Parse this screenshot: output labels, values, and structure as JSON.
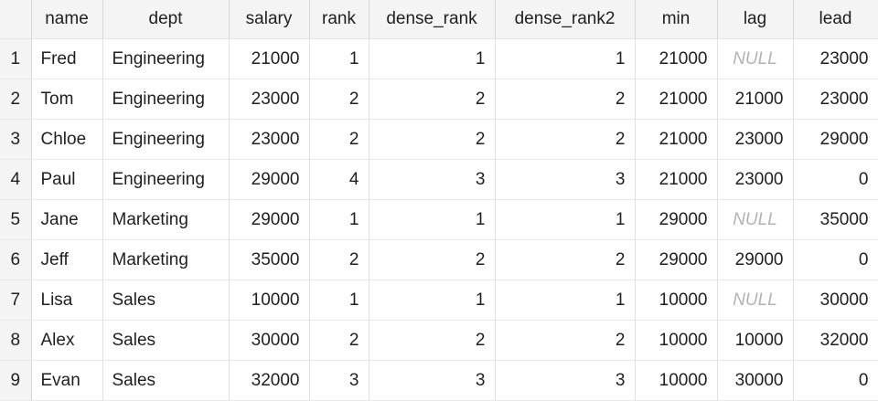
{
  "columns": [
    "name",
    "dept",
    "salary",
    "rank",
    "dense_rank",
    "dense_rank2",
    "min",
    "lag",
    "lead"
  ],
  "rows": [
    {
      "rownum": "1",
      "cells": [
        "Fred",
        "Engineering",
        "21000",
        "1",
        "1",
        "1",
        "21000",
        "NULL",
        "23000"
      ]
    },
    {
      "rownum": "2",
      "cells": [
        "Tom",
        "Engineering",
        "23000",
        "2",
        "2",
        "2",
        "21000",
        "21000",
        "23000"
      ]
    },
    {
      "rownum": "3",
      "cells": [
        "Chloe",
        "Engineering",
        "23000",
        "2",
        "2",
        "2",
        "21000",
        "23000",
        "29000"
      ]
    },
    {
      "rownum": "4",
      "cells": [
        "Paul",
        "Engineering",
        "29000",
        "4",
        "3",
        "3",
        "21000",
        "23000",
        "0"
      ]
    },
    {
      "rownum": "5",
      "cells": [
        "Jane",
        "Marketing",
        "29000",
        "1",
        "1",
        "1",
        "29000",
        "NULL",
        "35000"
      ]
    },
    {
      "rownum": "6",
      "cells": [
        "Jeff",
        "Marketing",
        "35000",
        "2",
        "2",
        "2",
        "29000",
        "29000",
        "0"
      ]
    },
    {
      "rownum": "7",
      "cells": [
        "Lisa",
        "Sales",
        "10000",
        "1",
        "1",
        "1",
        "10000",
        "NULL",
        "30000"
      ]
    },
    {
      "rownum": "8",
      "cells": [
        "Alex",
        "Sales",
        "30000",
        "2",
        "2",
        "2",
        "10000",
        "10000",
        "32000"
      ]
    },
    {
      "rownum": "9",
      "cells": [
        "Evan",
        "Sales",
        "32000",
        "3",
        "3",
        "3",
        "10000",
        "30000",
        "0"
      ]
    }
  ]
}
